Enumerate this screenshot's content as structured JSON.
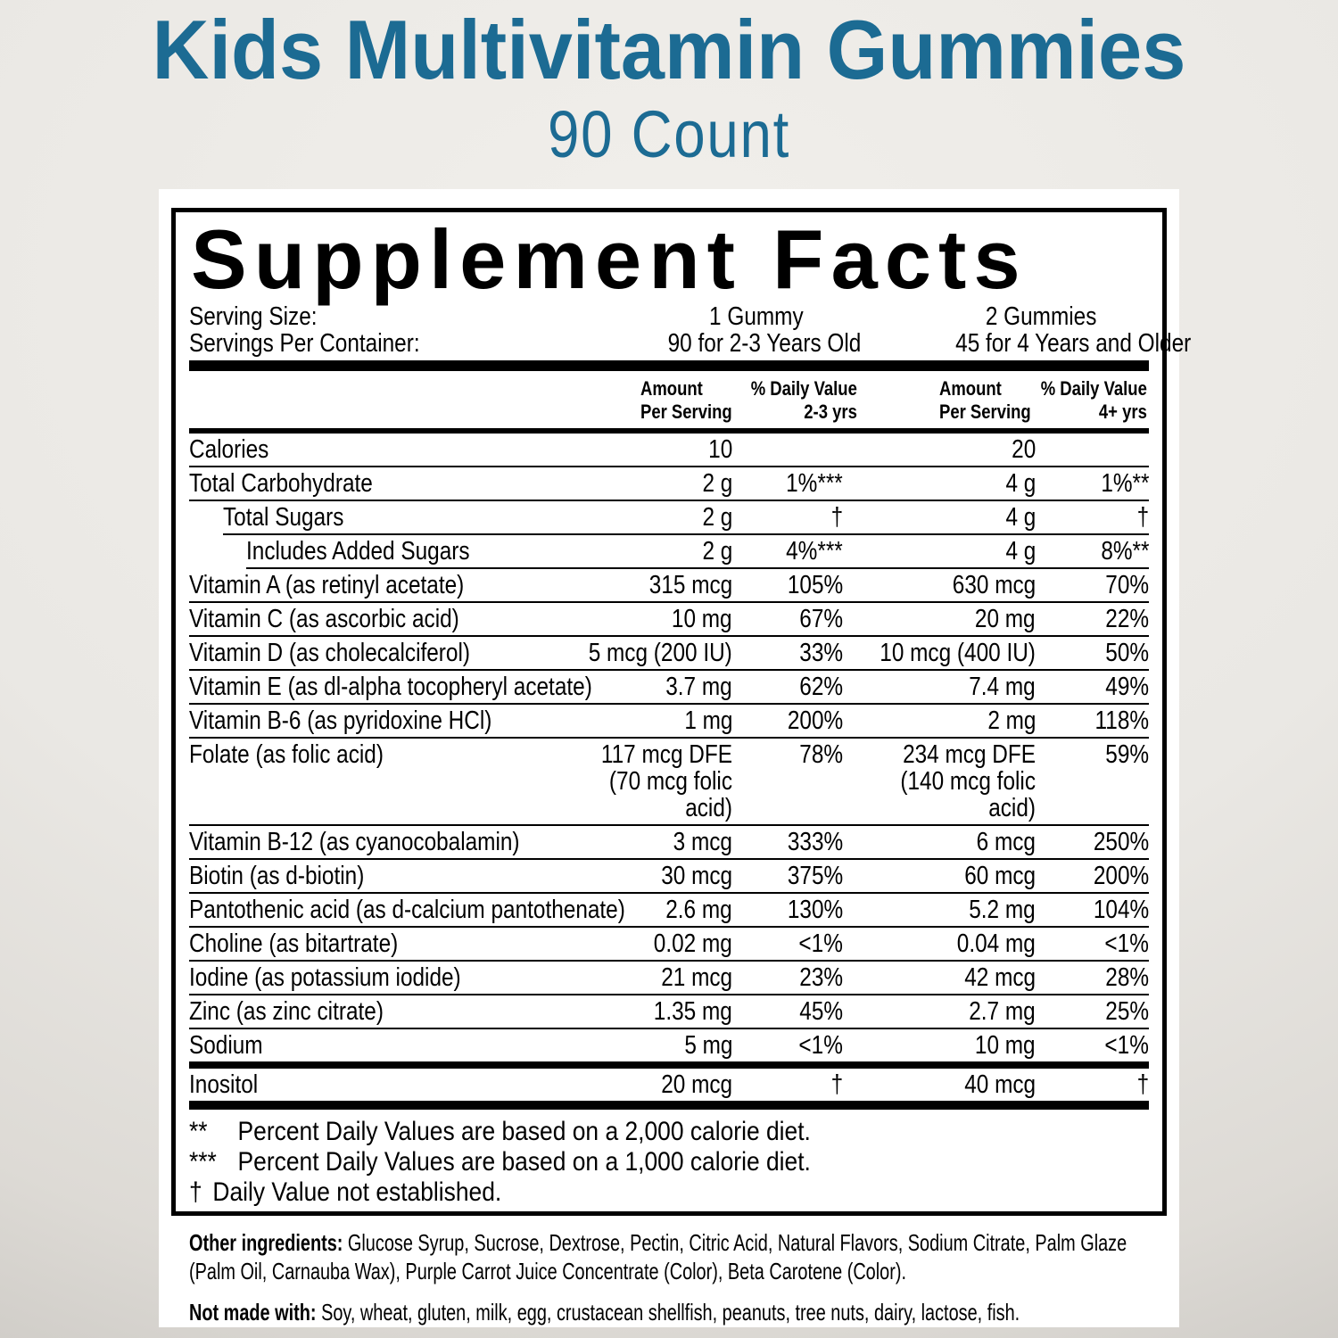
{
  "page": {
    "title": "Kids Multivitamin Gummies",
    "subtitle": "90 Count"
  },
  "colors": {
    "title_accent": "#1c6b93",
    "label_background": "#ffffff",
    "label_text": "#000000",
    "page_background": "#e9e7e3"
  },
  "label": {
    "heading": "Supplement Facts",
    "serving": {
      "serving_size_label": "Serving Size:",
      "serving_size_1": "1 Gummy",
      "serving_size_2": "2 Gummies",
      "servings_per_container_label": "Servings Per Container:",
      "servings_1": "90 for 2-3 Years Old",
      "servings_2": "45 for 4 Years and Older"
    },
    "header": {
      "amount_line1": "Amount",
      "amount_line2": "Per Serving",
      "dv1_line1": "% Daily Value",
      "dv1_line2": "2-3 yrs",
      "dv2_line1": "% Daily Value",
      "dv2_line2": "4+ yrs"
    },
    "rows": [
      {
        "name": "Calories",
        "indent": 0,
        "amount_1": "10",
        "daily_value_1": "",
        "amount_2": "20",
        "daily_value_2": "",
        "divider_after": "line"
      },
      {
        "name": "Total Carbohydrate",
        "indent": 0,
        "amount_1": "2 g",
        "daily_value_1": "1%***",
        "amount_2": "4 g",
        "daily_value_2": "1%**",
        "divider_after": "line"
      },
      {
        "name": "Total Sugars",
        "indent": 1,
        "amount_1": "2 g",
        "daily_value_1": "†",
        "amount_2": "4 g",
        "daily_value_2": "†",
        "divider_after": "line"
      },
      {
        "name": "Includes Added Sugars",
        "indent": 2,
        "amount_1": "2 g",
        "daily_value_1": "4%***",
        "amount_2": "4 g",
        "daily_value_2": "8%**",
        "divider_after": "line"
      },
      {
        "name": "Vitamin A (as retinyl acetate)",
        "indent": 0,
        "amount_1": "315 mcg",
        "daily_value_1": "105%",
        "amount_2": "630 mcg",
        "daily_value_2": "70%",
        "divider_after": "line"
      },
      {
        "name": "Vitamin C (as ascorbic acid)",
        "indent": 0,
        "amount_1": "10 mg",
        "daily_value_1": "67%",
        "amount_2": "20 mg",
        "daily_value_2": "22%",
        "divider_after": "line"
      },
      {
        "name": "Vitamin D (as cholecalciferol)",
        "indent": 0,
        "amount_1": "5 mcg (200 IU)",
        "daily_value_1": "33%",
        "amount_2": "10 mcg (400 IU)",
        "daily_value_2": "50%",
        "divider_after": "line"
      },
      {
        "name": "Vitamin E (as dl-alpha tocopheryl acetate)",
        "indent": 0,
        "amount_1": "3.7 mg",
        "daily_value_1": "62%",
        "amount_2": "7.4 mg",
        "daily_value_2": "49%",
        "divider_after": "line"
      },
      {
        "name": "Vitamin B-6 (as pyridoxine HCl)",
        "indent": 0,
        "amount_1": "1 mg",
        "daily_value_1": "200%",
        "amount_2": "2 mg",
        "daily_value_2": "118%",
        "divider_after": "line"
      },
      {
        "name": "Folate (as folic acid)",
        "indent": 0,
        "amount_1": "117 mcg DFE\n(70 mcg folic acid)",
        "daily_value_1": "78%",
        "amount_2": "234 mcg DFE\n(140 mcg folic acid)",
        "daily_value_2": "59%",
        "divider_after": "line"
      },
      {
        "name": "Vitamin B-12 (as cyanocobalamin)",
        "indent": 0,
        "amount_1": "3 mcg",
        "daily_value_1": "333%",
        "amount_2": "6 mcg",
        "daily_value_2": "250%",
        "divider_after": "line"
      },
      {
        "name": "Biotin (as d-biotin)",
        "indent": 0,
        "amount_1": "30 mcg",
        "daily_value_1": "375%",
        "amount_2": "60 mcg",
        "daily_value_2": "200%",
        "divider_after": "line"
      },
      {
        "name": "Pantothenic acid (as d-calcium pantothenate)",
        "indent": 0,
        "amount_1": "2.6 mg",
        "daily_value_1": "130%",
        "amount_2": "5.2 mg",
        "daily_value_2": "104%",
        "divider_after": "line"
      },
      {
        "name": "Choline (as bitartrate)",
        "indent": 0,
        "amount_1": "0.02 mg",
        "daily_value_1": "<1%",
        "amount_2": "0.04 mg",
        "daily_value_2": "<1%",
        "divider_after": "line"
      },
      {
        "name": "Iodine (as potassium iodide)",
        "indent": 0,
        "amount_1": "21 mcg",
        "daily_value_1": "23%",
        "amount_2": "42 mcg",
        "daily_value_2": "28%",
        "divider_after": "line"
      },
      {
        "name": "Zinc (as zinc citrate)",
        "indent": 0,
        "amount_1": "1.35 mg",
        "daily_value_1": "45%",
        "amount_2": "2.7 mg",
        "daily_value_2": "25%",
        "divider_after": "line"
      },
      {
        "name": "Sodium",
        "indent": 0,
        "amount_1": "5 mg",
        "daily_value_1": "<1%",
        "amount_2": "10 mg",
        "daily_value_2": "<1%",
        "divider_after": "bar-thin"
      },
      {
        "name": "Inositol",
        "indent": 0,
        "amount_1": "20 mcg",
        "daily_value_1": "†",
        "amount_2": "40 mcg",
        "daily_value_2": "†",
        "divider_after": "bar-thick"
      }
    ],
    "footnotes": [
      {
        "marker": "**",
        "text": "Percent Daily Values are based on a 2,000 calorie diet."
      },
      {
        "marker": "***",
        "text": "Percent Daily Values are based on a 1,000 calorie diet."
      },
      {
        "marker": "†",
        "text": "Daily Value not established."
      }
    ],
    "other_ingredients": {
      "label": "Other ingredients: ",
      "text": "Glucose Syrup, Sucrose, Dextrose, Pectin, Citric Acid, Natural Flavors, Sodium Citrate, Palm Glaze (Palm Oil, Carnauba Wax), Purple Carrot Juice Concentrate (Color), Beta Carotene (Color)."
    },
    "not_made_with": {
      "label": "Not made with: ",
      "text": "Soy, wheat, gluten, milk, egg, crustacean shellfish, peanuts, tree nuts, dairy, lactose, fish."
    }
  }
}
